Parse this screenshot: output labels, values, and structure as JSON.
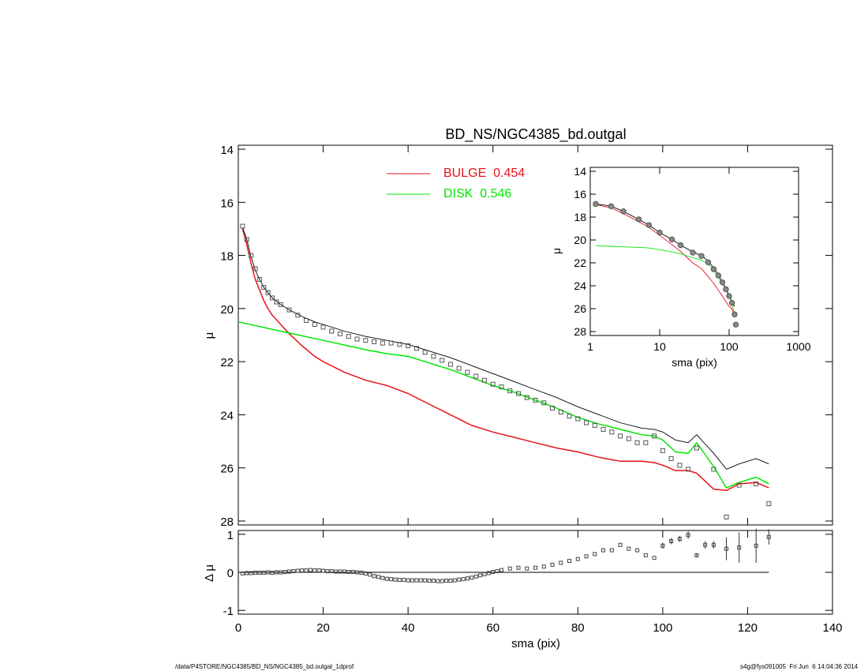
{
  "footer": {
    "path": "/data/P4STORE/NGC4385/BD_NS/NGC4385_bd.outgal_1dprof",
    "stamp": "s4g@fys091005  Fri Jun  6 14:04:36 2014"
  },
  "colors": {
    "bulge": "#e8121a",
    "disk": "#00e600",
    "total": "#000000",
    "data": "#555555"
  },
  "chart_data": [
    {
      "panel": "main",
      "type": "line",
      "title": "BD_NS/NGC4385_bd.outgal",
      "xlabel": "",
      "ylabel": "μ",
      "xlim": [
        0,
        140
      ],
      "ylim": [
        28,
        14
      ],
      "y_inverted": true,
      "xticks": [
        0,
        20,
        40,
        60,
        80,
        100,
        120,
        140
      ],
      "yticks": [
        14,
        16,
        18,
        20,
        22,
        24,
        26,
        28
      ],
      "legend": [
        {
          "label": "BULGE  0.454",
          "color": "#e8121a"
        },
        {
          "label": "DISK  0.546",
          "color": "#00e600"
        }
      ],
      "series": [
        {
          "name": "BULGE",
          "color": "#e8121a",
          "x": [
            1,
            2,
            3,
            4,
            5,
            6,
            7,
            8,
            10,
            12,
            15,
            18,
            20,
            25,
            30,
            35,
            40,
            45,
            50,
            55,
            60,
            65,
            70,
            75,
            80,
            85,
            90,
            95,
            98,
            100,
            103,
            106,
            108,
            112,
            115,
            118,
            122,
            125
          ],
          "y": [
            17.0,
            17.6,
            18.3,
            18.9,
            19.3,
            19.7,
            20.0,
            20.25,
            20.6,
            20.95,
            21.4,
            21.8,
            22.0,
            22.4,
            22.7,
            22.9,
            23.2,
            23.6,
            24.0,
            24.4,
            24.65,
            24.85,
            25.05,
            25.25,
            25.4,
            25.6,
            25.75,
            25.75,
            25.8,
            25.9,
            26.1,
            26.1,
            26.2,
            26.8,
            26.85,
            26.6,
            26.55,
            26.75
          ]
        },
        {
          "name": "DISK",
          "color": "#00e600",
          "x": [
            0,
            10,
            20,
            30,
            35,
            40,
            45,
            50,
            55,
            60,
            65,
            70,
            75,
            80,
            85,
            90,
            95,
            98,
            100,
            103,
            106,
            108,
            112,
            115,
            118,
            122,
            125
          ],
          "y": [
            20.5,
            20.85,
            21.2,
            21.55,
            21.7,
            21.8,
            22.05,
            22.3,
            22.6,
            22.9,
            23.15,
            23.45,
            23.75,
            24.1,
            24.35,
            24.55,
            24.75,
            24.8,
            24.95,
            25.4,
            25.45,
            25.05,
            25.95,
            26.75,
            26.55,
            26.35,
            26.6
          ]
        },
        {
          "name": "TOTAL",
          "color": "#000000",
          "x": [
            1,
            2,
            3,
            4,
            5,
            6,
            7,
            8,
            10,
            12,
            15,
            18,
            20,
            25,
            30,
            35,
            40,
            45,
            50,
            55,
            60,
            65,
            70,
            75,
            80,
            85,
            90,
            95,
            98,
            100,
            103,
            106,
            108,
            112,
            115,
            118,
            122,
            125
          ],
          "y": [
            16.95,
            17.4,
            18.05,
            18.55,
            18.9,
            19.2,
            19.4,
            19.6,
            19.85,
            20.05,
            20.3,
            20.5,
            20.6,
            20.85,
            21.05,
            21.2,
            21.35,
            21.6,
            21.85,
            22.15,
            22.45,
            22.75,
            23.05,
            23.35,
            23.7,
            24.0,
            24.3,
            24.5,
            24.55,
            24.65,
            24.95,
            25.05,
            24.75,
            25.45,
            26.05,
            25.85,
            25.65,
            25.85
          ]
        },
        {
          "name": "DATA",
          "color": "#555555",
          "x": [
            1,
            2,
            3,
            4,
            5,
            6,
            7,
            8,
            9,
            10,
            12,
            14,
            16,
            18,
            20,
            22,
            24,
            26,
            28,
            30,
            32,
            34,
            36,
            38,
            40,
            42,
            44,
            46,
            48,
            50,
            52,
            54,
            56,
            58,
            60,
            62,
            64,
            66,
            68,
            70,
            72,
            74,
            76,
            78,
            80,
            82,
            84,
            86,
            88,
            90,
            92,
            94,
            96,
            98,
            100,
            102,
            104,
            106,
            108,
            112,
            115,
            118,
            122,
            125
          ],
          "y": [
            16.9,
            17.4,
            18.0,
            18.5,
            18.9,
            19.2,
            19.4,
            19.6,
            19.75,
            19.85,
            20.05,
            20.25,
            20.45,
            20.6,
            20.7,
            20.85,
            20.95,
            21.05,
            21.15,
            21.2,
            21.25,
            21.3,
            21.3,
            21.35,
            21.4,
            21.5,
            21.65,
            21.8,
            21.95,
            22.1,
            22.25,
            22.4,
            22.55,
            22.7,
            22.85,
            22.95,
            23.1,
            23.2,
            23.35,
            23.45,
            23.55,
            23.75,
            23.9,
            24.05,
            24.15,
            24.3,
            24.4,
            24.55,
            24.65,
            24.8,
            24.9,
            25.05,
            25.05,
            24.8,
            25.35,
            25.65,
            25.9,
            26.05,
            25.25,
            26.05,
            27.85,
            26.65,
            26.6,
            27.35
          ]
        }
      ]
    },
    {
      "panel": "residual",
      "type": "scatter",
      "xlabel": "sma (pix)",
      "ylabel": "Δ μ",
      "xlim": [
        0,
        140
      ],
      "ylim": [
        -1.1,
        1.1
      ],
      "xticks": [
        0,
        20,
        40,
        60,
        80,
        100,
        120,
        140
      ],
      "yticks": [
        -1,
        0,
        1
      ],
      "zero_line_xmax": 125,
      "x": [
        1,
        2,
        3,
        4,
        5,
        6,
        7,
        8,
        9,
        10,
        11,
        12,
        13,
        14,
        15,
        16,
        17,
        18,
        19,
        20,
        21,
        22,
        23,
        24,
        25,
        26,
        27,
        28,
        29,
        30,
        31,
        32,
        33,
        34,
        35,
        36,
        37,
        38,
        39,
        40,
        41,
        42,
        43,
        44,
        45,
        46,
        47,
        48,
        49,
        50,
        51,
        52,
        53,
        54,
        55,
        56,
        57,
        58,
        59,
        60,
        61,
        62,
        64,
        66,
        68,
        70,
        72,
        74,
        76,
        78,
        80,
        82,
        84,
        86,
        88,
        90,
        92,
        94,
        96,
        98,
        100,
        102,
        104,
        106,
        108,
        112,
        115,
        118,
        122
      ],
      "y": [
        -0.03,
        -0.02,
        -0.02,
        -0.01,
        -0.01,
        -0.01,
        0.0,
        -0.01,
        0.0,
        0.0,
        0.01,
        0.02,
        0.03,
        0.04,
        0.05,
        0.05,
        0.06,
        0.05,
        0.05,
        0.04,
        0.03,
        0.03,
        0.02,
        0.02,
        0.02,
        0.01,
        0.01,
        0.0,
        -0.01,
        -0.03,
        -0.06,
        -0.1,
        -0.12,
        -0.15,
        -0.17,
        -0.18,
        -0.19,
        -0.2,
        -0.2,
        -0.21,
        -0.21,
        -0.21,
        -0.21,
        -0.21,
        -0.22,
        -0.22,
        -0.23,
        -0.23,
        -0.22,
        -0.22,
        -0.21,
        -0.19,
        -0.18,
        -0.16,
        -0.14,
        -0.11,
        -0.08,
        -0.05,
        -0.02,
        0.01,
        0.03,
        0.06,
        0.1,
        0.12,
        0.1,
        0.12,
        0.15,
        0.2,
        0.25,
        0.3,
        0.35,
        0.42,
        0.48,
        0.58,
        0.58,
        0.72,
        0.62,
        0.58,
        0.45,
        0.38,
        0.7,
        0.82,
        0.88,
        0.98,
        0.45,
        0.72,
        0.62,
        0.65,
        0.7
      ],
      "error": [
        0,
        0,
        0,
        0,
        0,
        0,
        0,
        0,
        0,
        0,
        0,
        0,
        0,
        0,
        0,
        0,
        0,
        0,
        0,
        0,
        0,
        0,
        0,
        0,
        0,
        0,
        0,
        0,
        0,
        0,
        0,
        0,
        0,
        0,
        0,
        0,
        0,
        0,
        0,
        0,
        0,
        0,
        0,
        0,
        0,
        0,
        0,
        0,
        0,
        0,
        0,
        0,
        0,
        0,
        0,
        0,
        0,
        0,
        0,
        0,
        0,
        0,
        0,
        0,
        0,
        0,
        0,
        0,
        0,
        0,
        0,
        0,
        0,
        0,
        0,
        0,
        0,
        0,
        0,
        0,
        0.08,
        0.08,
        0.08,
        0.1,
        0.05,
        0.1,
        0.3,
        0.4,
        0.45
      ],
      "extra_points": [
        {
          "x": 125,
          "y": 0.93,
          "error": 0.2
        },
        {
          "x": 110,
          "y": 0.72,
          "error": 0.1
        }
      ]
    },
    {
      "panel": "inset",
      "type": "line",
      "xlabel": "sma (pix)",
      "ylabel": "μ",
      "xscale": "log",
      "xlim": [
        1,
        1000
      ],
      "ylim": [
        28,
        14
      ],
      "y_inverted": true,
      "xticks": [
        1,
        10,
        100,
        1000
      ],
      "yticks": [
        14,
        16,
        18,
        20,
        22,
        24,
        26,
        28
      ],
      "series": [
        {
          "name": "BULGE",
          "color": "#e8121a",
          "x": [
            1.2,
            2,
            3,
            5,
            7,
            10,
            15,
            20,
            30,
            40,
            50,
            60,
            70,
            80,
            90,
            100,
            110,
            120
          ],
          "y": [
            16.9,
            17.2,
            17.7,
            18.4,
            18.9,
            19.6,
            20.4,
            21.0,
            22.0,
            22.5,
            23.2,
            23.8,
            24.4,
            24.9,
            25.4,
            25.8,
            26.0,
            26.7
          ]
        },
        {
          "name": "DISK",
          "color": "#00e600",
          "x": [
            1.2,
            2,
            3,
            5,
            7,
            10,
            15,
            20,
            30,
            40,
            50,
            60,
            70,
            80,
            90,
            100,
            110,
            120
          ],
          "y": [
            20.5,
            20.55,
            20.6,
            20.65,
            20.7,
            20.85,
            21.05,
            21.2,
            21.55,
            21.75,
            22.1,
            22.65,
            23.3,
            23.8,
            24.3,
            24.8,
            25.5,
            26.6
          ]
        },
        {
          "name": "TOTAL",
          "color": "#000000",
          "x": [
            1.2,
            2,
            3,
            5,
            7,
            10,
            15,
            20,
            30,
            40,
            50,
            60,
            70,
            80,
            90,
            100,
            110,
            120
          ],
          "y": [
            16.85,
            17.05,
            17.5,
            18.2,
            18.7,
            19.35,
            19.95,
            20.45,
            21.05,
            21.35,
            21.85,
            22.45,
            23.05,
            23.65,
            24.3,
            24.9,
            25.4,
            25.8
          ]
        },
        {
          "name": "DATA",
          "color": "#555555",
          "x": [
            1.2,
            2,
            3,
            5,
            7,
            10,
            15,
            20,
            30,
            40,
            50,
            60,
            70,
            80,
            90,
            100,
            110,
            120,
            125
          ],
          "y": [
            16.85,
            17.05,
            17.5,
            18.2,
            18.7,
            19.35,
            19.95,
            20.45,
            21.1,
            21.4,
            21.95,
            22.55,
            23.1,
            23.7,
            24.3,
            24.9,
            25.5,
            26.5,
            27.4
          ]
        }
      ]
    }
  ]
}
